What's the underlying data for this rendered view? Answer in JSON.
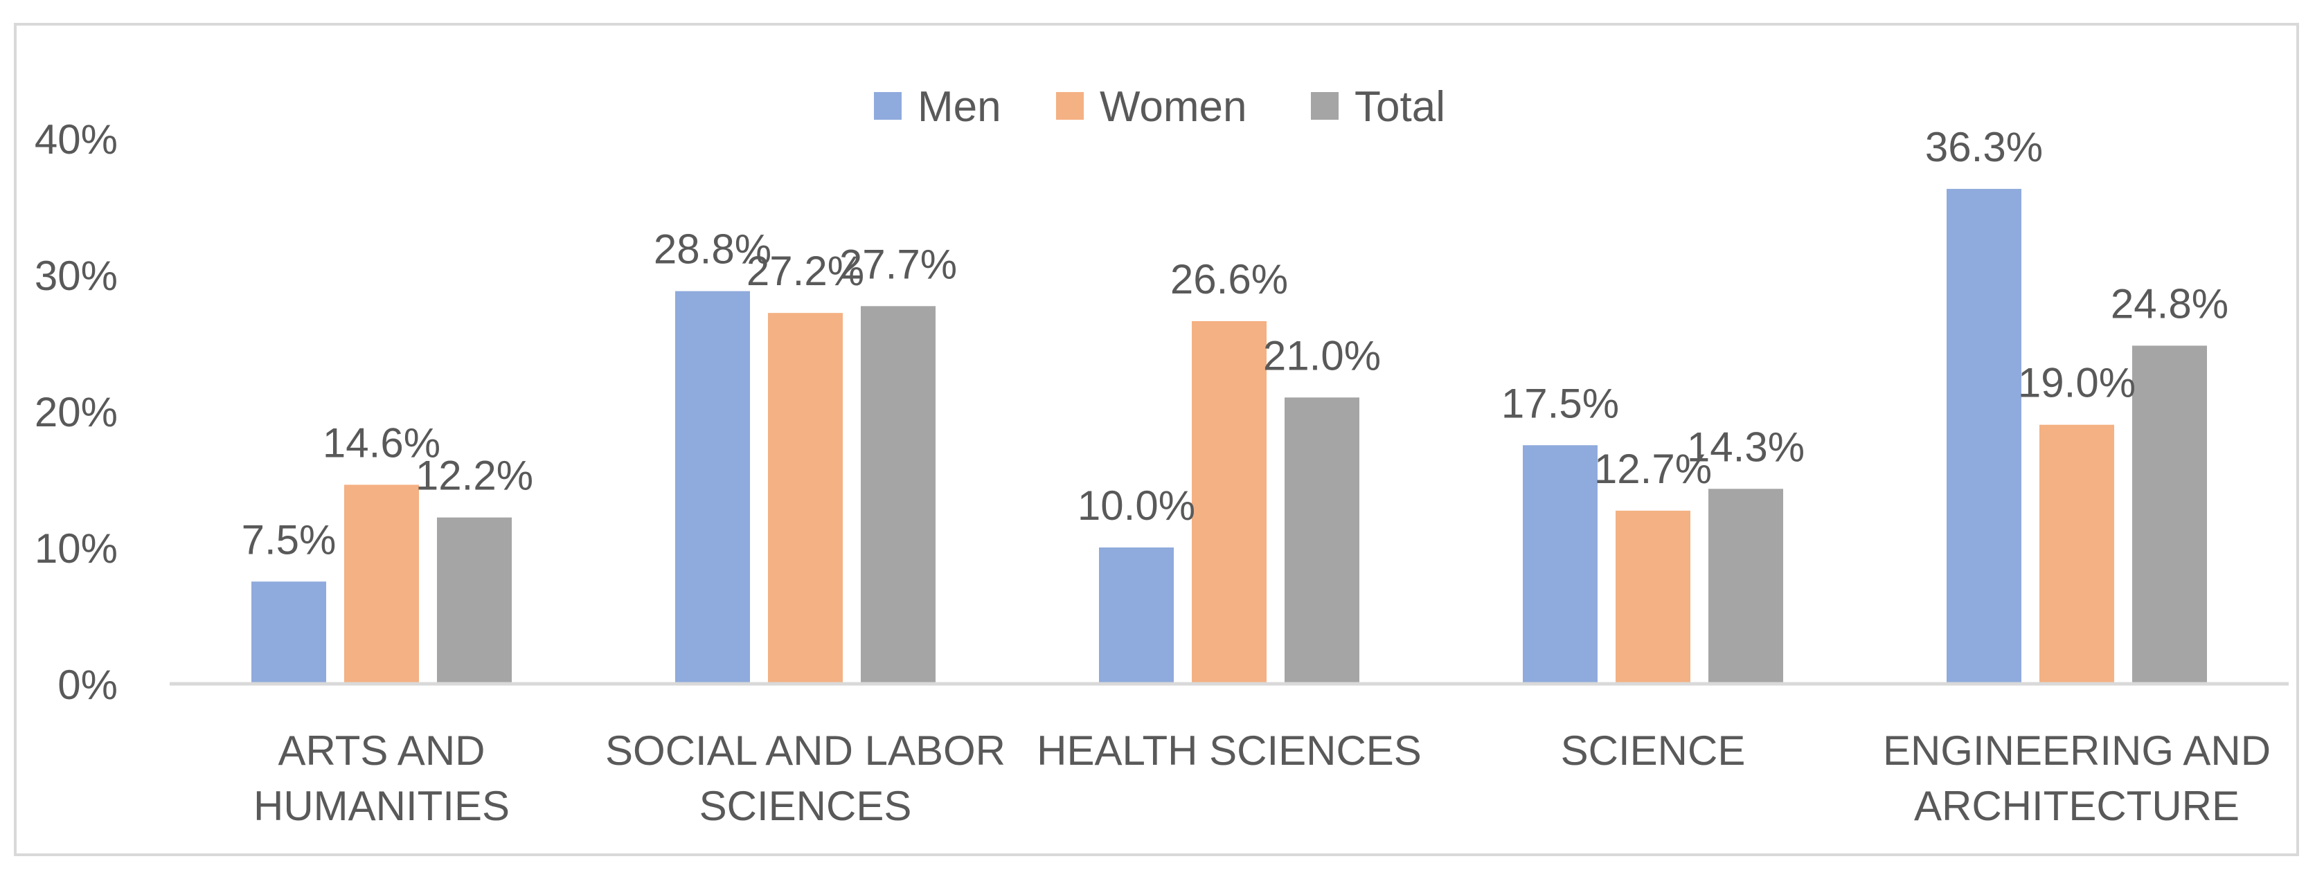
{
  "chart_data": {
    "type": "bar",
    "title": "",
    "xlabel": "",
    "ylabel": "",
    "ylim": [
      0,
      40
    ],
    "yticks": [
      0,
      10,
      20,
      30,
      40
    ],
    "ytick_labels": [
      "0%",
      "10%",
      "20%",
      "30%",
      "40%"
    ],
    "grid": false,
    "legend_position": "top-center",
    "categories": [
      [
        "ARTS AND",
        "HUMANITIES"
      ],
      [
        "SOCIAL AND LABOR",
        "SCIENCES"
      ],
      [
        "HEALTH SCIENCES"
      ],
      [
        "SCIENCE"
      ],
      [
        "ENGINEERING AND",
        "ARCHITECTURE"
      ]
    ],
    "series": [
      {
        "name": "Men",
        "color": "#8FAADC",
        "values": [
          7.5,
          28.8,
          10.0,
          17.5,
          36.3
        ],
        "labels": [
          "7.5%",
          "28.8%",
          "10.0%",
          "17.5%",
          "36.3%"
        ]
      },
      {
        "name": "Women",
        "color": "#F4B183",
        "values": [
          14.6,
          27.2,
          26.6,
          12.7,
          19.0
        ],
        "labels": [
          "14.6%",
          "27.2%",
          "26.6%",
          "12.7%",
          "19.0%"
        ]
      },
      {
        "name": "Total",
        "color": "#A5A5A5",
        "values": [
          12.2,
          27.7,
          21.0,
          14.3,
          24.8
        ],
        "labels": [
          "12.2%",
          "27.7%",
          "21.0%",
          "14.3%",
          "24.8%"
        ]
      }
    ]
  }
}
